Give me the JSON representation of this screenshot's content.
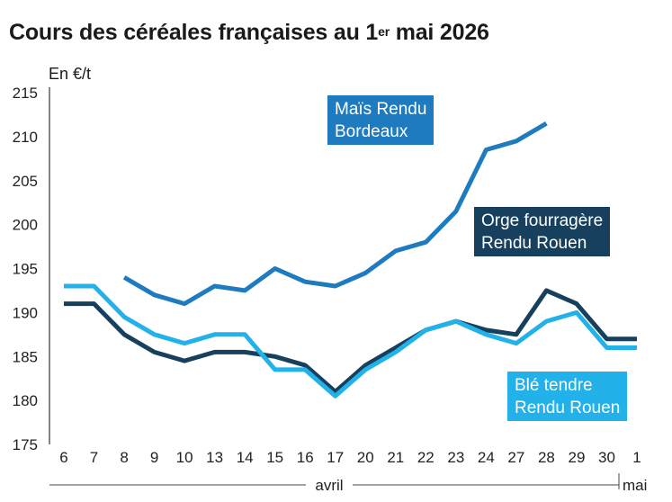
{
  "title": {
    "main": "Cours des céréales françaises au 1",
    "sup": "er",
    "tail": " mai 2026"
  },
  "unit_label": "En €/t",
  "colors": {
    "mais": "#1f7bc0",
    "orge": "#17405e",
    "ble": "#22b1e8",
    "axis": "#333333"
  },
  "chart_data": {
    "type": "line",
    "title": "Cours des céréales françaises au 1er mai 2026",
    "ylabel": "En €/t",
    "ylim": [
      175,
      215
    ],
    "yticks": [
      175,
      180,
      185,
      190,
      195,
      200,
      205,
      210,
      215
    ],
    "categories": [
      "6",
      "7",
      "8",
      "9",
      "10",
      "13",
      "14",
      "15",
      "16",
      "17",
      "20",
      "21",
      "22",
      "23",
      "24",
      "27",
      "28",
      "29",
      "30",
      "1"
    ],
    "months": [
      {
        "label": "avril"
      },
      {
        "label": "mai"
      }
    ],
    "grid": false,
    "series": [
      {
        "name": "Maïs Rendu Bordeaux",
        "label_lines": [
          "Maïs Rendu",
          "Bordeaux"
        ],
        "color": "#1f7bc0",
        "values": [
          null,
          null,
          194,
          192,
          191,
          193,
          192.5,
          195,
          193.5,
          193,
          194.5,
          197,
          198,
          201.5,
          208.5,
          209.5,
          211.5,
          null,
          null,
          null
        ]
      },
      {
        "name": "Orge fourragère Rendu Rouen",
        "label_lines": [
          "Orge fourragère",
          "Rendu Rouen"
        ],
        "color": "#17405e",
        "values": [
          191,
          191,
          187.5,
          185.5,
          184.5,
          185.5,
          185.5,
          185,
          184,
          181,
          184,
          186,
          188,
          189,
          188,
          187.5,
          192.5,
          191,
          187,
          187
        ]
      },
      {
        "name": "Blé tendre Rendu Rouen",
        "label_lines": [
          "Blé tendre",
          "Rendu Rouen"
        ],
        "color": "#22b1e8",
        "values": [
          193,
          193,
          189.5,
          187.5,
          186.5,
          187.5,
          187.5,
          183.5,
          183.5,
          180.5,
          183.5,
          185.5,
          188,
          189,
          187.5,
          186.5,
          189,
          190,
          186,
          186
        ]
      }
    ]
  }
}
